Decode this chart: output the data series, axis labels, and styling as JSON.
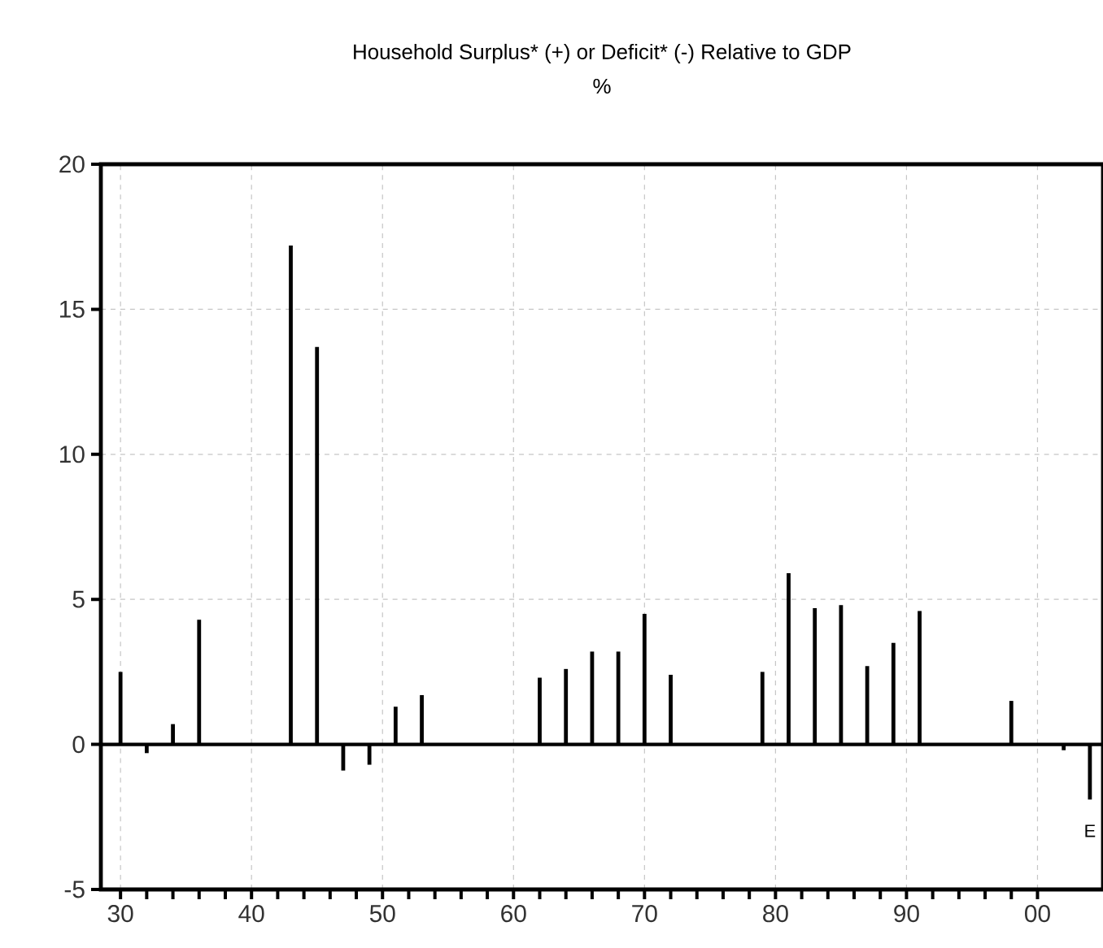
{
  "chart_data": {
    "type": "bar",
    "title": "Household Surplus* (+) or Deficit* (-) Relative to GDP",
    "subtitle": "%",
    "x": [
      1930,
      1932,
      1934,
      1936,
      1943,
      1945,
      1947,
      1949,
      1951,
      1953,
      1962,
      1964,
      1966,
      1968,
      1970,
      1972,
      1979,
      1981,
      1983,
      1985,
      1987,
      1989,
      1991,
      1998,
      2002,
      2004
    ],
    "values": [
      2.5,
      -0.3,
      0.7,
      4.3,
      17.2,
      13.7,
      -0.9,
      -0.7,
      1.3,
      1.7,
      2.3,
      2.6,
      3.2,
      3.2,
      4.5,
      2.4,
      2.5,
      5.9,
      4.7,
      4.8,
      2.7,
      3.5,
      4.6,
      1.5,
      -0.2,
      -1.9
    ],
    "color": "#000000",
    "xlim": [
      1928.5,
      2005
    ],
    "ylim": [
      -5,
      20
    ],
    "xticks": [
      {
        "value": 1930,
        "label": "30"
      },
      {
        "value": 1940,
        "label": "40"
      },
      {
        "value": 1950,
        "label": "50"
      },
      {
        "value": 1960,
        "label": "60"
      },
      {
        "value": 1970,
        "label": "70"
      },
      {
        "value": 1980,
        "label": "80"
      },
      {
        "value": 1990,
        "label": "90"
      },
      {
        "value": 2000,
        "label": "00"
      }
    ],
    "yticks": [
      -5,
      0,
      5,
      10,
      15,
      20
    ],
    "grid": true,
    "annotations": [
      {
        "text": "E",
        "x": 2004,
        "y": -1.9
      }
    ]
  }
}
